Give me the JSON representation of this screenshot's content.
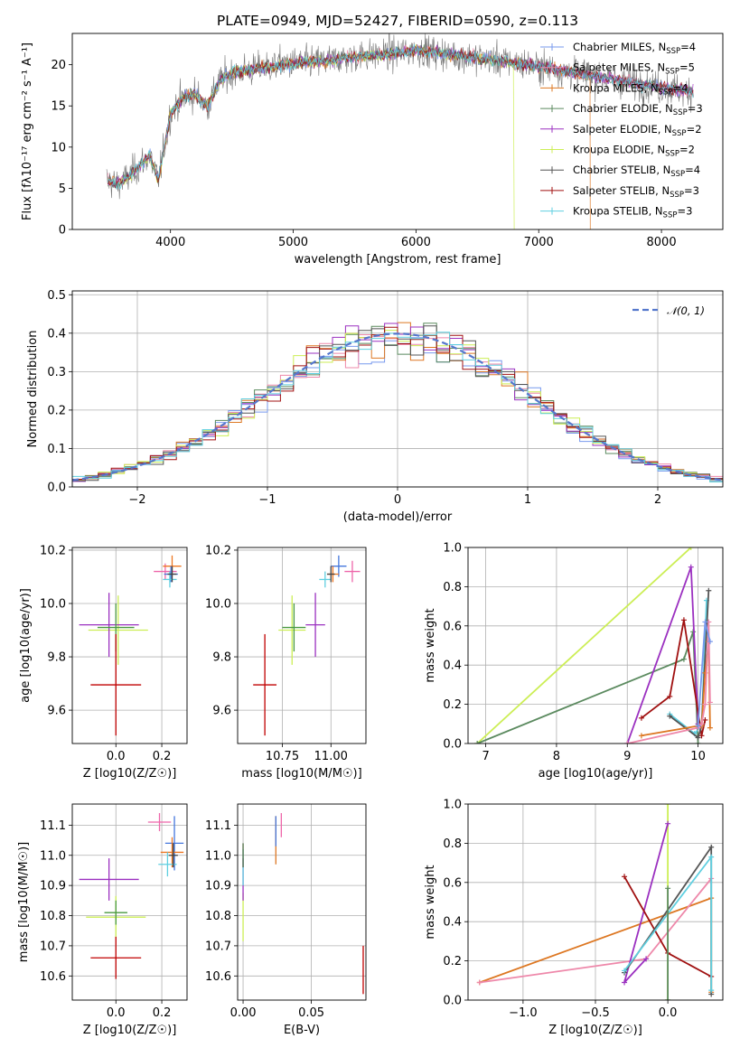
{
  "figure": {
    "title": "PLATE=0949, MJD=52427, FIBERID=0590, z=0.113"
  },
  "chart_data": [
    {
      "type": "line",
      "name": "spectrum",
      "xlabel": "wavelength [Angstrom, rest frame]",
      "ylabel": "Flux [fλ10⁻¹⁷ erg cm⁻² s⁻¹ A⁻¹]",
      "xlim": [
        3200,
        8500
      ],
      "ylim": [
        0,
        23.8
      ],
      "xticks": [
        4000,
        5000,
        6000,
        7000,
        8000
      ],
      "yticks": [
        0,
        5,
        10,
        15,
        20
      ],
      "continuum": {
        "x": [
          3480,
          3560,
          3650,
          3750,
          3830,
          3900,
          3950,
          4000,
          4100,
          4200,
          4300,
          4400,
          4500,
          4700,
          4900,
          5100,
          5300,
          5500,
          5700,
          5900,
          6000,
          6100,
          6300,
          6500,
          6700,
          6900,
          7100,
          7300,
          7500,
          7700,
          7900,
          8100,
          8260
        ],
        "y": [
          6.0,
          5.5,
          6.2,
          7.8,
          9.0,
          6.0,
          10.0,
          14.0,
          16.0,
          16.5,
          15.0,
          18.0,
          19.0,
          19.5,
          20.0,
          20.3,
          20.5,
          21.0,
          21.2,
          21.5,
          21.8,
          21.6,
          21.2,
          20.8,
          20.5,
          20.0,
          19.6,
          19.0,
          18.5,
          18.0,
          17.5,
          17.0,
          16.8
        ]
      },
      "legend": [
        "Chabrier MILES, N_SSP=4",
        "Salpeter MILES, N_SSP=5",
        "Kroupa MILES, N_SSP=4",
        "Chabrier ELODIE, N_SSP=3",
        "Salpeter ELODIE, N_SSP=2",
        "Kroupa ELODIE, N_SSP=2",
        "Chabrier STELIB, N_SSP=4",
        "Salpeter STELIB, N_SSP=3",
        "Kroupa STELIB, N_SSP=3"
      ],
      "legend_labels": [
        {
          "pre": "Chabrier MILES, N",
          "sub": "SSP",
          "post": "=4"
        },
        {
          "pre": "Salpeter MILES, N",
          "sub": "SSP",
          "post": "=5"
        },
        {
          "pre": "Kroupa MILES, N",
          "sub": "SSP",
          "post": "=4"
        },
        {
          "pre": "Chabrier ELODIE, N",
          "sub": "SSP",
          "post": "=3"
        },
        {
          "pre": "Salpeter ELODIE, N",
          "sub": "SSP",
          "post": "=2"
        },
        {
          "pre": "Kroupa ELODIE, N",
          "sub": "SSP",
          "post": "=2"
        },
        {
          "pre": "Chabrier STELIB, N",
          "sub": "SSP",
          "post": "=4"
        },
        {
          "pre": "Salpeter STELIB, N",
          "sub": "SSP",
          "post": "=3"
        },
        {
          "pre": "Kroupa STELIB, N",
          "sub": "SSP",
          "post": "=3"
        }
      ],
      "legend_placement": "upper right",
      "fit_ranges": [
        {
          "model": "Kroupa ELODIE, N_SSP=2",
          "end": 6800
        },
        {
          "model": "Kroupa MILES, N_SSP=4",
          "end": 7420
        }
      ],
      "grid": false
    },
    {
      "type": "step",
      "name": "residual-histogram",
      "xlabel": "(data-model)/error",
      "ylabel": "Normed distribution",
      "xlim": [
        -2.5,
        2.5
      ],
      "ylim": [
        0,
        0.51
      ],
      "xticks": [
        -2,
        -1,
        0,
        1,
        2
      ],
      "yticks": [
        0.0,
        0.1,
        0.2,
        0.3,
        0.4,
        0.5
      ],
      "bin_width": 0.1,
      "reference_curve": {
        "name": "𝒩(0, 1)",
        "style": "dashed"
      },
      "grid": true
    },
    {
      "type": "scatter",
      "name": "Z-vs-age",
      "xlabel": "Z [log10(Z/Z☉)]",
      "ylabel": "age  [log10(age/yr)]",
      "xlim": [
        -0.19,
        0.31
      ],
      "ylim": [
        9.475,
        10.21
      ],
      "xticks": [
        0.0,
        0.2
      ],
      "yticks": [
        9.6,
        9.8,
        10.0,
        10.2
      ],
      "grid": true,
      "points": [
        {
          "x": 0.01,
          "y": 9.9,
          "xerr": 0.13,
          "yerr": 0.13,
          "color": "#ccee55"
        },
        {
          "x": -0.03,
          "y": 9.92,
          "xerr": 0.13,
          "yerr": 0.12,
          "color": "#9b30c0"
        },
        {
          "x": 0.0,
          "y": 9.91,
          "xerr": 0.08,
          "yerr": 0.09,
          "color": "#4a9a40"
        },
        {
          "x": 0.0,
          "y": 9.695,
          "xerr": 0.11,
          "yerr": 0.19,
          "color": "#c00000"
        },
        {
          "x": 0.215,
          "y": 10.12,
          "xerr": 0.05,
          "yerr": 0.03,
          "color": "#ee66aa"
        },
        {
          "x": 0.245,
          "y": 10.14,
          "xerr": 0.04,
          "yerr": 0.04,
          "color": "#ee7722"
        },
        {
          "x": 0.24,
          "y": 10.11,
          "xerr": 0.03,
          "yerr": 0.03,
          "color": "#4477dd"
        },
        {
          "x": 0.235,
          "y": 10.09,
          "xerr": 0.03,
          "yerr": 0.03,
          "color": "#5fcfe0"
        },
        {
          "x": 0.245,
          "y": 10.11,
          "xerr": 0.02,
          "yerr": 0.03,
          "color": "#444444"
        }
      ]
    },
    {
      "type": "scatter",
      "name": "mass-vs-age",
      "xlabel": "mass [log10(M/M☉)]",
      "ylabel": "",
      "xlim": [
        10.52,
        11.18
      ],
      "ylim": [
        9.475,
        10.21
      ],
      "xticks": [
        10.75,
        11.0
      ],
      "yticks": [
        9.6,
        9.8,
        10.0,
        10.2
      ],
      "grid": true,
      "points": [
        {
          "x": 10.8,
          "y": 9.9,
          "xerr": 0.07,
          "yerr": 0.13,
          "color": "#ccee55"
        },
        {
          "x": 10.92,
          "y": 9.92,
          "xerr": 0.05,
          "yerr": 0.12,
          "color": "#9b30c0"
        },
        {
          "x": 10.81,
          "y": 9.91,
          "xerr": 0.06,
          "yerr": 0.09,
          "color": "#4a9a40"
        },
        {
          "x": 10.66,
          "y": 9.695,
          "xerr": 0.06,
          "yerr": 0.19,
          "color": "#c00000"
        },
        {
          "x": 11.11,
          "y": 10.12,
          "xerr": 0.04,
          "yerr": 0.04,
          "color": "#ee66aa"
        },
        {
          "x": 11.04,
          "y": 10.14,
          "xerr": 0.04,
          "yerr": 0.04,
          "color": "#4477dd"
        },
        {
          "x": 11.01,
          "y": 10.11,
          "xerr": 0.03,
          "yerr": 0.03,
          "color": "#ee7722"
        },
        {
          "x": 10.97,
          "y": 10.09,
          "xerr": 0.03,
          "yerr": 0.03,
          "color": "#5fcfe0"
        },
        {
          "x": 11.0,
          "y": 10.11,
          "xerr": 0.02,
          "yerr": 0.03,
          "color": "#444444"
        }
      ]
    },
    {
      "type": "line",
      "name": "mass-weight-vs-age",
      "xlabel": "age  [log10(age/yr)]",
      "ylabel": "mass weight",
      "xlim": [
        6.75,
        10.35
      ],
      "ylim": [
        0,
        1.0
      ],
      "xticks": [
        7,
        8,
        9,
        10
      ],
      "yticks": [
        0.0,
        0.2,
        0.4,
        0.6,
        0.8,
        1.0
      ],
      "grid": true,
      "series": [
        {
          "color": "#ccee55",
          "x": [
            6.88,
            9.9
          ],
          "y": [
            0.0,
            1.0
          ]
        },
        {
          "color": "#5b8a5f",
          "x": [
            6.88,
            9.8,
            9.93,
            10.0
          ],
          "y": [
            0.0,
            0.43,
            0.57,
            0.0
          ]
        },
        {
          "color": "#9b30c0",
          "x": [
            9.0,
            9.9,
            10.0
          ],
          "y": [
            0.0,
            0.9,
            0.1
          ]
        },
        {
          "color": "#a01010",
          "x": [
            9.2,
            9.6,
            9.8,
            10.05,
            10.1
          ],
          "y": [
            0.13,
            0.24,
            0.63,
            0.04,
            0.12
          ]
        },
        {
          "color": "#5fcfe0",
          "x": [
            9.6,
            9.95,
            10.05,
            10.12
          ],
          "y": [
            0.15,
            0.05,
            0.09,
            0.73
          ]
        },
        {
          "color": "#555555",
          "x": [
            9.6,
            10.0,
            10.05,
            10.15
          ],
          "y": [
            0.14,
            0.03,
            0.09,
            0.78
          ]
        },
        {
          "color": "#dd7722",
          "x": [
            9.2,
            10.0,
            10.05,
            10.1,
            10.15,
            10.17
          ],
          "y": [
            0.04,
            0.09,
            0.09,
            0.36,
            0.52,
            0.08
          ]
        },
        {
          "color": "#ee88aa",
          "x": [
            9.0,
            10.0,
            10.05,
            10.1,
            10.15,
            10.17
          ],
          "y": [
            0.0,
            0.08,
            0.1,
            0.2,
            0.62,
            0.21
          ]
        },
        {
          "color": "#7799ee",
          "x": [
            10.0,
            10.1,
            10.17
          ],
          "y": [
            0.09,
            0.62,
            0.52
          ]
        }
      ]
    },
    {
      "type": "scatter",
      "name": "Z-vs-mass",
      "xlabel": "Z [log10(Z/Z☉)]",
      "ylabel": "mass [log10(M/M☉)]",
      "xlim": [
        -0.19,
        0.31
      ],
      "ylim": [
        10.52,
        11.17
      ],
      "xticks": [
        0.0,
        0.2
      ],
      "yticks": [
        10.6,
        10.7,
        10.8,
        10.9,
        11.0,
        11.1
      ],
      "grid": true,
      "points": [
        {
          "x": 0.0,
          "y": 10.795,
          "xerr": 0.13,
          "yerr": 0.07,
          "color": "#ccee55"
        },
        {
          "x": -0.03,
          "y": 10.92,
          "xerr": 0.13,
          "yerr": 0.07,
          "color": "#9b30c0"
        },
        {
          "x": 0.0,
          "y": 10.81,
          "xerr": 0.05,
          "yerr": 0.04,
          "color": "#4a9a40"
        },
        {
          "x": 0.0,
          "y": 10.66,
          "xerr": 0.11,
          "yerr": 0.07,
          "color": "#c00000"
        },
        {
          "x": 0.19,
          "y": 11.11,
          "xerr": 0.05,
          "yerr": 0.03,
          "color": "#ee66aa"
        },
        {
          "x": 0.255,
          "y": 11.04,
          "xerr": 0.04,
          "yerr": 0.09,
          "color": "#4477dd"
        },
        {
          "x": 0.245,
          "y": 11.01,
          "xerr": 0.05,
          "yerr": 0.05,
          "color": "#ee7722"
        },
        {
          "x": 0.225,
          "y": 10.97,
          "xerr": 0.04,
          "yerr": 0.04,
          "color": "#5fcfe0"
        },
        {
          "x": 0.25,
          "y": 11.0,
          "xerr": 0.02,
          "yerr": 0.04,
          "color": "#444444"
        }
      ]
    },
    {
      "type": "scatter",
      "name": "EBV-vs-mass",
      "xlabel": "E(B-V)",
      "ylabel": "",
      "xlim": [
        -0.004,
        0.09
      ],
      "ylim": [
        10.52,
        11.17
      ],
      "xticks": [
        0.0,
        0.05
      ],
      "yticks": [
        10.6,
        10.7,
        10.8,
        10.9,
        11.0,
        11.1
      ],
      "grid": true,
      "points": [
        {
          "x": 0.0,
          "y": 10.795,
          "xerr": 0.0,
          "yerr": 0.08,
          "color": "#ccee55"
        },
        {
          "x": 0.0,
          "y": 10.92,
          "xerr": 0.0,
          "yerr": 0.07,
          "color": "#9b30c0"
        },
        {
          "x": 0.0,
          "y": 10.96,
          "xerr": 0.0,
          "yerr": 0.06,
          "color": "#5fcfe0"
        },
        {
          "x": 0.0,
          "y": 11.0,
          "xerr": 0.0,
          "yerr": 0.04,
          "color": "#4a6a40"
        },
        {
          "x": 0.024,
          "y": 11.05,
          "xerr": 0.0,
          "yerr": 0.08,
          "color": "#dd7722"
        },
        {
          "x": 0.024,
          "y": 11.08,
          "xerr": 0.0,
          "yerr": 0.05,
          "color": "#4477dd"
        },
        {
          "x": 0.028,
          "y": 11.1,
          "xerr": 0.0,
          "yerr": 0.04,
          "color": "#ee66aa"
        },
        {
          "x": 0.088,
          "y": 10.62,
          "xerr": 0.0,
          "yerr": 0.08,
          "color": "#c00000"
        }
      ]
    },
    {
      "type": "line",
      "name": "mass-weight-vs-Z",
      "xlabel": "Z [log10(Z/Z☉)]",
      "ylabel": "mass weight",
      "xlim": [
        -1.38,
        0.38
      ],
      "ylim": [
        0,
        1.0
      ],
      "xticks": [
        -1.0,
        -0.5,
        0.0
      ],
      "yticks": [
        0.0,
        0.2,
        0.4,
        0.6,
        0.8,
        1.0
      ],
      "grid": true,
      "series": [
        {
          "color": "#ccee55",
          "x": [
            0.0,
            0.0
          ],
          "y": [
            0.0,
            1.0
          ]
        },
        {
          "color": "#dd7722",
          "x": [
            -1.3,
            0.3,
            0.3
          ],
          "y": [
            0.09,
            0.52,
            0.04
          ]
        },
        {
          "color": "#ee88aa",
          "x": [
            -1.3,
            -0.15,
            0.3
          ],
          "y": [
            0.09,
            0.21,
            0.62
          ]
        },
        {
          "color": "#9b30c0",
          "x": [
            -0.15,
            -0.3,
            0.0
          ],
          "y": [
            0.21,
            0.09,
            0.9
          ]
        },
        {
          "color": "#a01010",
          "x": [
            -0.3,
            0.0,
            0.3
          ],
          "y": [
            0.63,
            0.24,
            0.12
          ]
        },
        {
          "color": "#555555",
          "x": [
            -0.3,
            0.3,
            0.3
          ],
          "y": [
            0.14,
            0.78,
            0.03
          ]
        },
        {
          "color": "#5fcfe0",
          "x": [
            -0.3,
            0.3,
            0.3
          ],
          "y": [
            0.15,
            0.73,
            0.05
          ]
        },
        {
          "color": "#5b8a5f",
          "x": [
            0.0,
            0.0
          ],
          "y": [
            0.57,
            0.0
          ]
        }
      ]
    }
  ]
}
